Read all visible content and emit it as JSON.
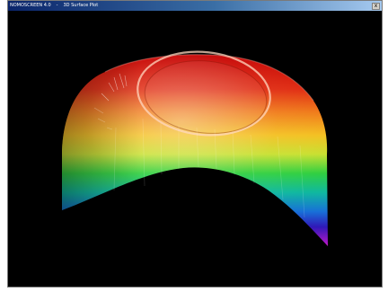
{
  "window": {
    "app_name": "NOMOSCREEN 4.0",
    "separator": "-",
    "view_name": "3D Surface Plot",
    "close_glyph": "x"
  },
  "colors": {
    "background": "#000000",
    "titlebar_start": "#0a246a",
    "titlebar_end": "#a6caf0"
  },
  "icons": {
    "close": "close-icon"
  }
}
